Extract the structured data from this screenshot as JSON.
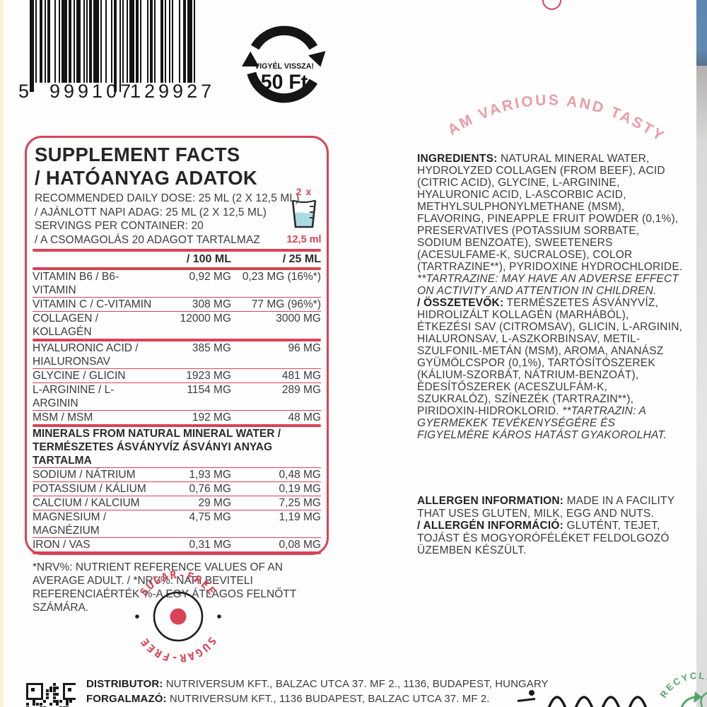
{
  "colors": {
    "red": "#d84356",
    "pink": "#ec9ba6",
    "dark": "#262626",
    "green": "#53a567",
    "water_blue": "#a9dbe3",
    "blue_strip": "#6089b2"
  },
  "top": {
    "barcode_digits": {
      "first": "5",
      "group1": "999107",
      "group2": "129927"
    },
    "deposit": {
      "line1": "VIGYÉL VISSZA!",
      "line2": "50 Ft"
    },
    "tagline": "I AM VARIOUS AND TASTY!"
  },
  "panel": {
    "title": "SUPPLEMENT FACTS\n/ HATÓANYAG ADATOK",
    "dose": "RECOMMENDED DAILY DOSE: 25 ML (2 X 12,5 ML)\n/ AJÁNLOTT NAPI ADAG: 25 ML (2 X 12,5 ML)\nSERVINGS PER CONTAINER: 20\n/ A CSOMAGOLÁS 20 ADAGOT TARTALMAZ",
    "cup": {
      "qty": "2 x",
      "volume": "12,5 ml"
    },
    "columns": {
      "per100": "/ 100 ML",
      "per25": "/ 25 ML"
    },
    "rows": [
      {
        "name": "VITAMIN B6 / B6-VITAMIN",
        "per100": "0,92 MG",
        "per25": "0,23 MG (16%*)"
      },
      {
        "name": "VITAMIN C / C-VITAMIN",
        "per100": "308 MG",
        "per25": "77 MG (96%*)"
      },
      {
        "name": "COLLAGEN / KOLLAGÉN",
        "per100": "12000 MG",
        "per25": "3000 MG"
      },
      {
        "name": "HYALURONIC ACID / HIALURONSAV",
        "per100": "385 MG",
        "per25": "96 MG"
      },
      {
        "name": "GLYCINE / GLICIN",
        "per100": "1923 MG",
        "per25": "481 MG"
      },
      {
        "name": "L-ARGININE / L-ARGININ",
        "per100": "1154 MG",
        "per25": "289 MG"
      },
      {
        "name": "MSM / MSM",
        "per100": "192 MG",
        "per25": "48 MG"
      }
    ],
    "minerals_header": "MINERALS FROM NATURAL MINERAL WATER / TERMÉSZETES ÁSVÁNYVÍZ ÁSVÁNYI ANYAG TARTALMA",
    "mineral_rows": [
      {
        "name": "SODIUM / NÁTRIUM",
        "per100": "1,93 MG",
        "per25": "0,48 MG"
      },
      {
        "name": "POTASSIUM / KÁLIUM",
        "per100": "0,76 MG",
        "per25": "0,19 MG"
      },
      {
        "name": "CALCIUM / KALCIUM",
        "per100": "29 MG",
        "per25": "7,25 MG"
      },
      {
        "name": "MAGNESIUM / MAGNÉZIUM",
        "per100": "4,75 MG",
        "per25": "1,19 MG"
      },
      {
        "name": "IRON / VAS",
        "per100": "0,31 MG",
        "per25": "0,08 MG"
      }
    ],
    "footnote": "*NRV%: NUTRIENT REFERENCE VALUES OF AN AVERAGE ADULT. / *NRV%: NAPI BEVITELI REFERENCIAÉRTÉK %-A EGY ÁTLAGOS FELNŐTT SZÁMÁRA."
  },
  "ingredients": {
    "label_en": "INGREDIENTS:",
    "text_en": " NATURAL MINERAL WATER, HYDROLYZED COLLAGEN (FROM BEEF), ACID (CITRIC ACID), GLYCINE, L-ARGININE, HYALURONIC ACID, L-ASCORBIC ACID, METHYLSULPHONYLMETHANE (MSM), FLAVORING, PINEAPPLE FRUIT POWDER (0,1%), PRESERVATIVES (POTASSIUM SORBATE, SODIUM BENZOATE), SWEETENERS (ACESULFAME-K, SUCRALOSE), COLOR (TARTRAZINE**), PYRIDOXINE HYDROCHLORIDE. ",
    "warning_en": "**TARTRAZINE: MAY HAVE AN ADVERSE EFFECT ON ACTIVITY AND ATTENTION IN CHILDREN.",
    "label_hu": "/ ÖSSZETEVŐK:",
    "text_hu": " TERMÉSZETES ÁSVÁNYVÍZ, HIDROLIZÁLT KOLLAGÉN (MARHÁBÓL), ÉTKEZÉSI SAV (CITROMSAV), GLICIN, L-ARGININ, HIALURONSAV, L-ASZKORBINSAV, METIL-SZULFONIL-METÁN (MSM), AROMA, ANANÁSZ GYÜMÖLCSPOR (0,1%), TARTÓSÍTÓSZEREK (KÁLIUM-SZORBÁT, NÁTRIUM-BENZOÁT), ÉDESÍTŐSZEREK (ACESZULFÁM-K, SZUKRALÓZ), SZÍNEZÉK (TARTRAZIN**), PIRIDOXIN-HIDROKLORID. ",
    "warning_hu": "**TARTRAZIN: A GYERMEKEK TEVÉKENYSÉGÉRE ÉS FIGYELMÉRE KÁROS HATÁST GYAKOROLHAT."
  },
  "allergen": {
    "label_en": "ALLERGEN INFORMATION:",
    "text_en": " MADE IN A FACILITY THAT USES GLUTEN, MILK, EGG AND NUTS.",
    "label_hu": "/ ALLERGÉN INFORMÁCIÓ:",
    "text_hu": " GLUTÉNT, TEJET, TOJÁST ÉS MOGYORÓFÉLÉKET FELDOLGOZÓ ÜZEMBEN KÉSZÜLT."
  },
  "stamp": {
    "top": "SUGAR-FREE",
    "bottom": "SUGAR-FREE"
  },
  "footer": {
    "distributor_label": "DISTRIBUTOR:",
    "distributor_text": " NUTRIVERSUM KFT., BALZAC UTCA 37. MF 2., 1136, BUDAPEST, HUNGARY",
    "forgalmazo_label": "FORGALMAZÓ:",
    "forgalmazo_text": " NUTRIVERSUM KFT., 1136 BUDAPEST, BALZAC UTCA 37. MF 2.",
    "recyclable": "RECYCLABLE"
  }
}
